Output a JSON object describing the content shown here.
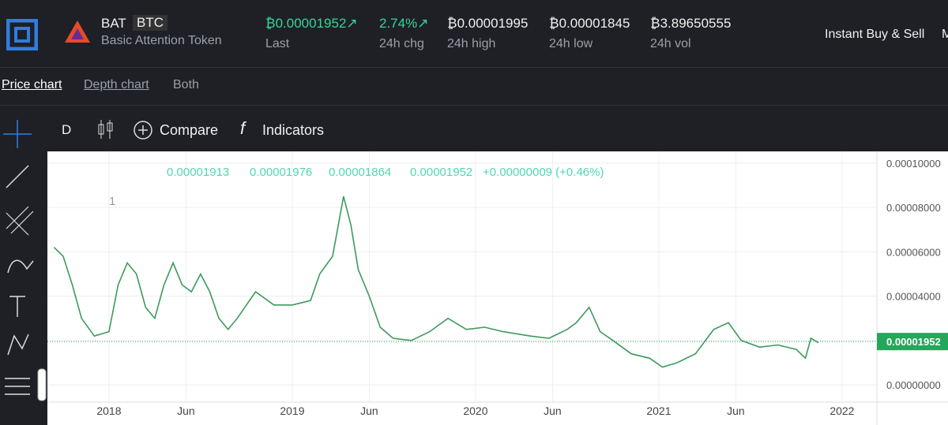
{
  "header": {
    "symbol": "BAT",
    "quote": "BTC",
    "name": "Basic Attention Token",
    "stats": [
      {
        "value": "₿0.00001952↗",
        "label": "Last"
      },
      {
        "value": "2.74%↗",
        "label": "24h chg"
      },
      {
        "value": "₿0.00001995",
        "label": "24h high"
      },
      {
        "value": "₿0.00001845",
        "label": "24h low"
      },
      {
        "value": "₿3.89650555",
        "label": "24h vol"
      }
    ],
    "action": "Instant Buy & Sell",
    "cut_off": "M"
  },
  "tabs": [
    "Price chart",
    "Depth chart",
    "Both"
  ],
  "toolbar": {
    "interval": "D",
    "compare": "Compare",
    "indicators": "Indicators"
  },
  "chart_data": {
    "type": "line",
    "legend": [
      "0.00001913",
      "0.00001976",
      "0.00001864",
      "0.00001952",
      "+0.00000009 (+0.46%)"
    ],
    "pane_label": "1",
    "x": [
      2017.7,
      2017.75,
      2017.8,
      2017.85,
      2017.92,
      2018.0,
      2018.05,
      2018.1,
      2018.15,
      2018.2,
      2018.25,
      2018.3,
      2018.35,
      2018.4,
      2018.45,
      2018.5,
      2018.55,
      2018.6,
      2018.65,
      2018.7,
      2018.8,
      2018.9,
      2019.0,
      2019.1,
      2019.15,
      2019.22,
      2019.28,
      2019.32,
      2019.36,
      2019.42,
      2019.48,
      2019.55,
      2019.65,
      2019.75,
      2019.85,
      2019.95,
      2020.05,
      2020.15,
      2020.3,
      2020.4,
      2020.5,
      2020.55,
      2020.62,
      2020.68,
      2020.75,
      2020.85,
      2020.95,
      2021.02,
      2021.1,
      2021.2,
      2021.3,
      2021.38,
      2021.45,
      2021.55,
      2021.65,
      2021.75,
      2021.8,
      2021.83,
      2021.87
    ],
    "series": [
      {
        "color": "#3d9a5c",
        "values": [
          6.2e-05,
          5.8e-05,
          4.5e-05,
          3e-05,
          2.2e-05,
          2.4e-05,
          4.5e-05,
          5.5e-05,
          5e-05,
          3.5e-05,
          3e-05,
          4.5e-05,
          5.5e-05,
          4.5e-05,
          4.2e-05,
          5e-05,
          4.2e-05,
          3e-05,
          2.5e-05,
          3e-05,
          4.2e-05,
          3.6e-05,
          3.6e-05,
          3.8e-05,
          5e-05,
          5.8e-05,
          8.5e-05,
          7.2e-05,
          5.2e-05,
          4e-05,
          2.6e-05,
          2.1e-05,
          2e-05,
          2.4e-05,
          3e-05,
          2.5e-05,
          2.6e-05,
          2.4e-05,
          2.2e-05,
          2.1e-05,
          2.5e-05,
          2.8e-05,
          3.5e-05,
          2.4e-05,
          2e-05,
          1.4e-05,
          1.2e-05,
          8e-06,
          1e-05,
          1.4e-05,
          2.5e-05,
          2.8e-05,
          2e-05,
          1.7e-05,
          1.8e-05,
          1.6e-05,
          1.2e-05,
          2.1e-05,
          1.9e-05
        ]
      }
    ],
    "last_price": {
      "value": 1.952e-05,
      "label": "0.00001952",
      "color": "#26a65b"
    },
    "xlim": [
      2017.664,
      2022.19
    ],
    "xticks": [
      2018,
      {
        "value": 2018.42,
        "label": "Jun"
      },
      2019,
      {
        "value": 2019.42,
        "label": "Jun"
      },
      2020,
      {
        "value": 2020.42,
        "label": "Jun"
      },
      2021,
      {
        "value": 2021.42,
        "label": "Jun"
      },
      2022
    ],
    "ylim": [
      -7.8e-06,
      0.0001053
    ],
    "yticks": [
      {
        "value": 0,
        "label": "0.00000000"
      },
      {
        "value": 2e-05,
        "label": "0.00002000"
      },
      {
        "value": 4e-05,
        "label": "0.00004000"
      },
      {
        "value": 6e-05,
        "label": "0.00006000"
      },
      {
        "value": 8e-05,
        "label": "0.00008000"
      },
      {
        "value": 0.0001,
        "label": "0.00010000"
      }
    ],
    "grid": true
  }
}
